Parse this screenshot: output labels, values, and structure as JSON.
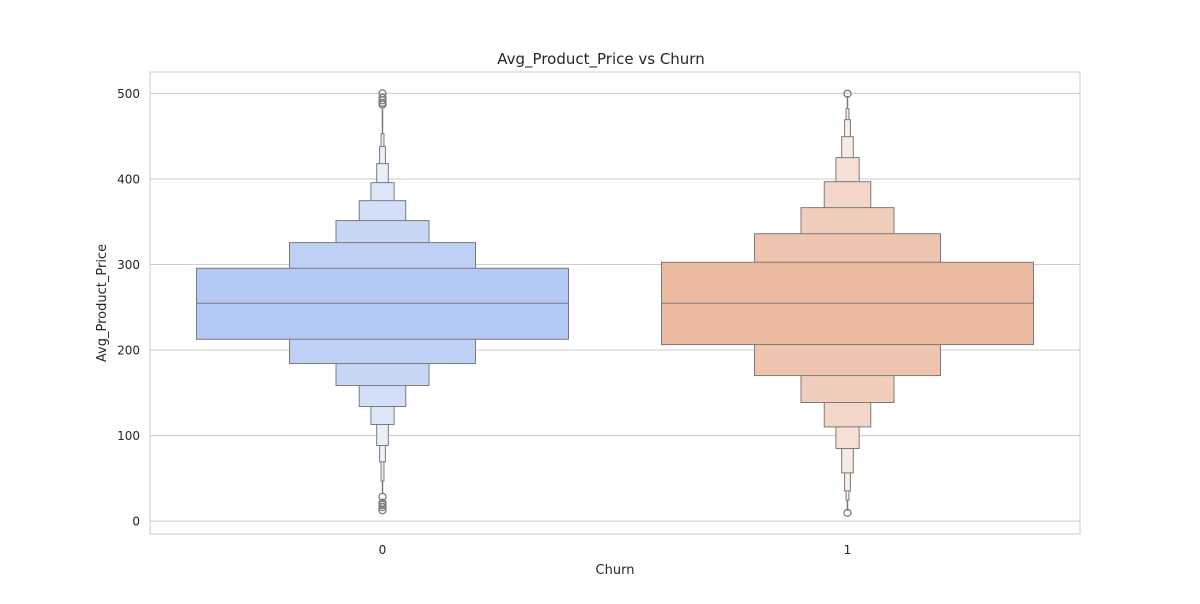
{
  "chart_data": {
    "type": "boxen",
    "title": "Avg_Product_Price vs Churn",
    "xlabel": "Churn",
    "ylabel": "Avg_Product_Price",
    "categories": [
      "0",
      "1"
    ],
    "ylim": [
      -15,
      525
    ],
    "yticks": [
      0,
      100,
      200,
      300,
      400,
      500
    ],
    "grid": "horizontal",
    "legend": "none",
    "colors": {
      "0": "#b3c8f3",
      "1": "#ecb9a1",
      "edge": "#7a7a7a",
      "grid": "#cccccc"
    },
    "series": [
      {
        "category": "0",
        "median": 254.7,
        "levels": [
          [
            212.6,
            295.6
          ],
          [
            184.2,
            325.6
          ],
          [
            158.5,
            351.3
          ],
          [
            134.0,
            374.6
          ],
          [
            113.0,
            395.7
          ],
          [
            88.4,
            417.9
          ],
          [
            69.3,
            438.0
          ],
          [
            47.0,
            452.9
          ]
        ],
        "whisker": [
          32.7,
          482.0
        ],
        "outliers": [
          28.4,
          21.6,
          19.0,
          16.5,
          12.8,
          487.0,
          489.0,
          492.0,
          495.0,
          500.0
        ]
      },
      {
        "category": "1",
        "median": 254.7,
        "levels": [
          [
            206.4,
            302.6
          ],
          [
            170.2,
            336.0
          ],
          [
            138.7,
            366.5
          ],
          [
            110.2,
            396.8
          ],
          [
            84.9,
            424.9
          ],
          [
            56.4,
            449.4
          ],
          [
            35.4,
            469.3
          ],
          [
            24.5,
            482.1
          ]
        ],
        "whisker": [
          12.0,
          497.0
        ],
        "outliers": [
          9.7,
          499.6
        ]
      }
    ]
  }
}
